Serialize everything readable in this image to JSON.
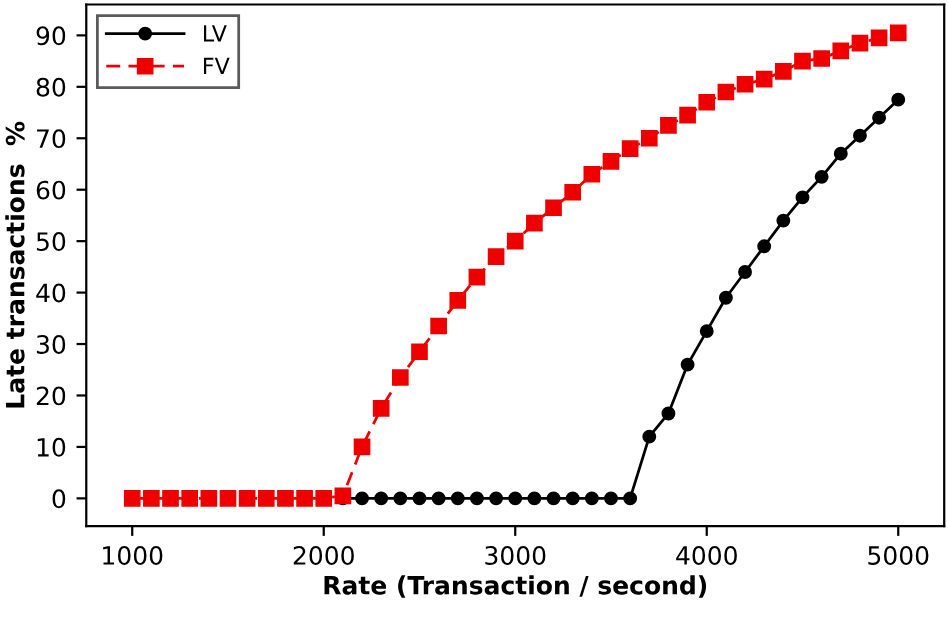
{
  "chart_data": {
    "type": "line",
    "xlabel": "Rate (Transaction / second)",
    "ylabel": "Late transactions  %",
    "x": [
      1000,
      1100,
      1200,
      1300,
      1400,
      1500,
      1600,
      1700,
      1800,
      1900,
      2000,
      2100,
      2200,
      2300,
      2400,
      2500,
      2600,
      2700,
      2800,
      2900,
      3000,
      3100,
      3200,
      3300,
      3400,
      3500,
      3600,
      3700,
      3800,
      3900,
      4000,
      4100,
      4200,
      4300,
      4400,
      4500,
      4600,
      4700,
      4800,
      4900,
      5000
    ],
    "series": [
      {
        "name": "LV",
        "color": "#000000",
        "marker": "circle",
        "line_style": "solid",
        "values": [
          null,
          null,
          null,
          null,
          null,
          null,
          null,
          null,
          null,
          null,
          null,
          0,
          0,
          0,
          0,
          0,
          0,
          0,
          0,
          0,
          0,
          0,
          0,
          0,
          0,
          0,
          0,
          12,
          16.5,
          26,
          32.5,
          39,
          44,
          49,
          54,
          58.5,
          62.5,
          67,
          70.5,
          74,
          77.5
        ]
      },
      {
        "name": "FV",
        "color": "#ee0000",
        "marker": "square",
        "line_style": "dashed",
        "values": [
          0,
          0,
          0,
          0,
          0,
          0,
          0,
          0,
          0,
          0,
          0,
          0.5,
          10,
          17.5,
          23.5,
          28.5,
          33.5,
          38.5,
          43,
          47,
          50,
          53.5,
          56.5,
          59.5,
          63,
          65.5,
          68,
          70,
          72.5,
          74.5,
          77,
          79,
          80.5,
          81.5,
          83,
          85,
          85.5,
          87,
          88.5,
          89.5,
          90.5
        ]
      }
    ],
    "xlim": [
      760,
      5240
    ],
    "ylim": [
      -5.4,
      96
    ],
    "xticks": [
      1000,
      2000,
      3000,
      4000,
      5000
    ],
    "yticks": [
      0,
      10,
      20,
      30,
      40,
      50,
      60,
      70,
      80,
      90
    ],
    "grid": false,
    "legend": "top left"
  }
}
